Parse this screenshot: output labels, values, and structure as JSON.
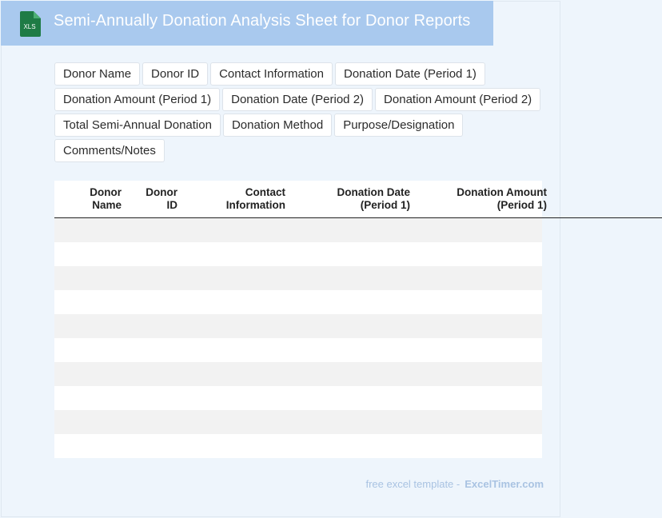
{
  "header": {
    "title": "Semi-Annually Donation Analysis Sheet for Donor Reports",
    "icon_label": "XLS",
    "icon_color": "#1e7b45",
    "background": "#a9c9ee"
  },
  "tags": [
    "Donor Name",
    "Donor ID",
    "Contact Information",
    "Donation Date (Period 1)",
    "Donation Amount (Period 1)",
    "Donation Date (Period 2)",
    "Donation Amount (Period 2)",
    "Total Semi-Annual Donation",
    "Donation Method",
    "Purpose/Designation",
    "Comments/Notes"
  ],
  "table": {
    "columns": [
      {
        "line1": "Donor",
        "line2": "Name"
      },
      {
        "line1": "Donor",
        "line2": "ID"
      },
      {
        "line1": "Contact",
        "line2": "Information"
      },
      {
        "line1": "Donation Date",
        "line2": "(Period 1)"
      },
      {
        "line1": "Donation Amount",
        "line2": "(Period 1)"
      }
    ],
    "row_count": 10
  },
  "footer": {
    "text": "free excel template -",
    "brand": "ExcelTimer.com"
  }
}
